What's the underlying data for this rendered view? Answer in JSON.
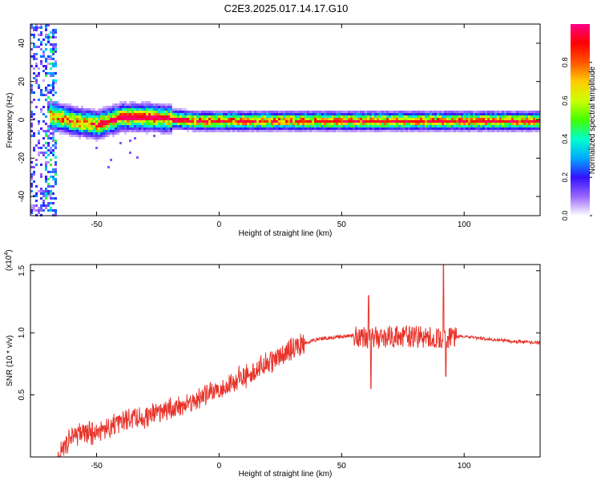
{
  "figure": {
    "title": "C2E3.2025.017.14.17.G10"
  },
  "chart_data": [
    {
      "type": "heatmap",
      "title": "C2E3.2025.017.14.17.G10",
      "xlabel": "Height of straight line (km)",
      "ylabel": "Frequency (Hz)",
      "xlim": [
        -77,
        131
      ],
      "ylim": [
        -50,
        50
      ],
      "xticks": [
        -50,
        0,
        50,
        100
      ],
      "yticks": [
        -40,
        -20,
        0,
        20,
        40
      ],
      "colorbar": {
        "label": "Normalized spectral amplitude",
        "ticks": [
          0.0,
          0.2,
          0.4,
          0.6,
          0.8
        ],
        "range": [
          0.0,
          1.0
        ],
        "colormap": [
          "#ffffff",
          "#9966ff",
          "#3311ff",
          "#00aaff",
          "#00ffcc",
          "#44ff00",
          "#ccff00",
          "#ffcc00",
          "#ff5500",
          "#ff0000",
          "#ff0088"
        ]
      },
      "ridge": {
        "description_x": [
          -70,
          -60,
          -50,
          -40,
          -30,
          -20,
          -10,
          0,
          10,
          20,
          40,
          60,
          80,
          90,
          100,
          131
        ],
        "frequency": [
          3,
          0,
          -2,
          2,
          2,
          1,
          0,
          0,
          0,
          0,
          0,
          0,
          0,
          0,
          0,
          0
        ]
      }
    },
    {
      "type": "line",
      "xlabel": "Height of straight line (km)",
      "ylabel": "SNR (10 * v/v)",
      "scale_label": "(x10",
      "scale_exp": "4",
      "ylabel_unit": ")",
      "xlim": [
        -77,
        131
      ],
      "ylim": [
        0,
        1.55
      ],
      "xticks": [
        -50,
        0,
        50,
        100
      ],
      "yticks": [
        0.5,
        1.0,
        1.5
      ],
      "ytick_labels": [
        "0.5",
        "1.0",
        "1.5"
      ],
      "series": [
        {
          "color": "#e8332a",
          "x": [
            -77,
            -65,
            -60,
            -50,
            -40,
            -30,
            -20,
            -10,
            0,
            10,
            20,
            30,
            40,
            50,
            55,
            60,
            65,
            70,
            80,
            90,
            92,
            95,
            100,
            110,
            120,
            131
          ],
          "y": [
            0,
            0,
            0.18,
            0.2,
            0.28,
            0.32,
            0.38,
            0.45,
            0.55,
            0.65,
            0.75,
            0.88,
            0.95,
            0.97,
            0.98,
            0.97,
            0.96,
            0.97,
            0.97,
            0.95,
            0.95,
            0.97,
            0.97,
            0.95,
            0.93,
            0.92
          ],
          "peaks": [
            {
              "x": 61,
              "y": 1.3
            },
            {
              "x": 62,
              "y": 0.55
            },
            {
              "x": 91.5,
              "y": 1.57
            },
            {
              "x": 92.5,
              "y": 0.65
            }
          ]
        }
      ]
    }
  ]
}
